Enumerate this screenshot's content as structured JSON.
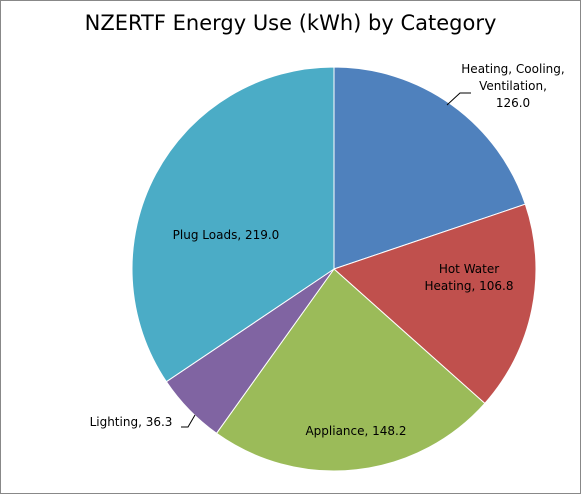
{
  "chart_data": {
    "type": "pie",
    "title": "NZERTF Energy Use (kWh) by Category",
    "slices": [
      {
        "label": "Heating, Cooling, Ventilation",
        "value": 126.0,
        "label_lines": [
          "Heating, Cooling,",
          "Ventilation,",
          "126.0"
        ],
        "color": "#4F81BD"
      },
      {
        "label": "Hot Water Heating",
        "value": 106.8,
        "label_lines": [
          "Hot Water",
          "Heating, 106.8"
        ],
        "color": "#C0504D"
      },
      {
        "label": "Appliance",
        "value": 148.2,
        "label_lines": [
          "Appliance, 148.2"
        ],
        "color": "#9BBB59"
      },
      {
        "label": "Lighting",
        "value": 36.3,
        "label_lines": [
          "Lighting, 36.3"
        ],
        "color": "#8064A2"
      },
      {
        "label": "Plug Loads",
        "value": 219.0,
        "label_lines": [
          "Plug Loads, 219.0"
        ],
        "color": "#4BACC6"
      }
    ]
  }
}
